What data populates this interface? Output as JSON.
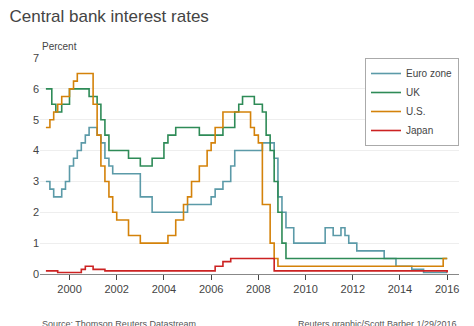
{
  "chart_data": {
    "type": "line",
    "line_style": "step",
    "title": "Central bank interest rates",
    "ylabel": "Percent",
    "annotations": [
      "Source: Thomson Reuters Datastream",
      "Reuters graphic/Scott Barber 1/29/2016"
    ],
    "xlim": [
      1998.75,
      2016.5
    ],
    "xticks": [
      2000,
      2002,
      2004,
      2006,
      2008,
      2010,
      2012,
      2014,
      2016
    ],
    "ylim": [
      0,
      7
    ],
    "yticks": [
      0,
      1,
      2,
      3,
      4,
      5,
      6,
      7
    ],
    "grid": "y",
    "legend": "upper right",
    "series": [
      {
        "name": "Euro zone",
        "color": "#5b9aa8",
        "x": [
          1999.0,
          1999.17,
          1999.33,
          1999.5,
          1999.67,
          1999.83,
          2000.0,
          2000.17,
          2000.33,
          2000.5,
          2000.67,
          2000.83,
          2001.0,
          2001.17,
          2001.33,
          2001.5,
          2001.67,
          2001.83,
          2002.0,
          2002.5,
          2003.0,
          2003.5,
          2004.0,
          2004.5,
          2005.0,
          2005.17,
          2005.5,
          2005.83,
          2006.0,
          2006.17,
          2006.5,
          2006.83,
          2007.0,
          2007.5,
          2008.0,
          2008.17,
          2008.5,
          2008.67,
          2008.83,
          2009.0,
          2009.17,
          2009.5,
          2009.83,
          2010.0,
          2010.17,
          2010.83,
          2011.17,
          2011.5,
          2011.67,
          2011.83,
          2012.0,
          2012.17,
          2012.67,
          2013.0,
          2013.33,
          2013.83,
          2014.0,
          2014.5,
          2015.0,
          2016.0
        ],
        "values": [
          3.0,
          2.75,
          2.5,
          2.5,
          2.75,
          3.0,
          3.5,
          3.75,
          4.0,
          4.25,
          4.5,
          4.75,
          4.75,
          4.5,
          4.25,
          3.75,
          3.5,
          3.25,
          3.25,
          3.25,
          2.5,
          2.0,
          2.0,
          2.0,
          2.25,
          2.25,
          2.25,
          2.25,
          2.5,
          2.75,
          3.0,
          3.5,
          4.0,
          4.0,
          4.0,
          4.25,
          4.25,
          3.75,
          2.5,
          2.0,
          1.5,
          1.0,
          1.0,
          1.0,
          1.0,
          1.5,
          1.25,
          1.5,
          1.25,
          1.0,
          1.0,
          0.75,
          0.75,
          0.75,
          0.5,
          0.25,
          0.25,
          0.15,
          0.05,
          0.05
        ]
      },
      {
        "name": "UK",
        "color": "#2e8b57",
        "x": [
          1999.0,
          1999.25,
          1999.42,
          1999.67,
          2000.0,
          2000.5,
          2000.83,
          2001.0,
          2001.17,
          2001.33,
          2001.5,
          2001.67,
          2001.83,
          2002.0,
          2002.5,
          2003.0,
          2003.5,
          2004.0,
          2004.17,
          2004.5,
          2004.83,
          2005.0,
          2005.5,
          2006.0,
          2006.5,
          2007.0,
          2007.17,
          2007.33,
          2007.5,
          2007.67,
          2007.83,
          2008.0,
          2008.17,
          2008.33,
          2008.5,
          2008.67,
          2008.83,
          2009.0,
          2009.17,
          2009.33,
          2010.0,
          2015.0,
          2016.0
        ],
        "values": [
          6.0,
          5.5,
          5.25,
          5.5,
          6.0,
          6.0,
          5.75,
          5.75,
          5.5,
          5.0,
          4.5,
          4.0,
          4.0,
          4.0,
          3.75,
          3.5,
          3.75,
          4.25,
          4.5,
          4.75,
          4.75,
          4.75,
          4.5,
          4.5,
          4.75,
          5.25,
          5.5,
          5.75,
          5.75,
          5.75,
          5.5,
          5.5,
          5.25,
          4.5,
          4.0,
          3.0,
          2.0,
          1.0,
          0.5,
          0.5,
          0.5,
          0.5,
          0.5
        ]
      },
      {
        "name": "U.S.",
        "color": "#d4820a",
        "x": [
          1999.0,
          1999.17,
          1999.33,
          1999.5,
          1999.67,
          1999.83,
          2000.0,
          2000.17,
          2000.33,
          2000.5,
          2001.0,
          2001.17,
          2001.33,
          2001.5,
          2001.67,
          2001.83,
          2002.0,
          2002.5,
          2003.0,
          2003.5,
          2004.0,
          2004.17,
          2004.5,
          2004.83,
          2005.0,
          2005.17,
          2005.5,
          2005.83,
          2006.0,
          2006.17,
          2006.5,
          2006.83,
          2007.0,
          2007.5,
          2007.67,
          2007.83,
          2008.0,
          2008.17,
          2008.5,
          2008.67,
          2008.83,
          2009.0,
          2015.5,
          2015.83,
          2016.0
        ],
        "values": [
          4.75,
          5.0,
          5.25,
          5.5,
          5.75,
          5.75,
          6.0,
          6.25,
          6.5,
          6.5,
          5.5,
          4.5,
          3.5,
          3.0,
          2.5,
          2.0,
          1.75,
          1.25,
          1.0,
          1.0,
          1.0,
          1.25,
          1.75,
          2.25,
          2.5,
          3.0,
          3.5,
          4.0,
          4.25,
          4.75,
          5.25,
          5.25,
          5.25,
          5.25,
          4.75,
          4.5,
          4.25,
          2.25,
          1.0,
          0.5,
          0.25,
          0.25,
          0.25,
          0.5,
          0.5
        ]
      },
      {
        "name": "Japan",
        "color": "#cc2222",
        "x": [
          1999.0,
          1999.5,
          2000.0,
          2000.5,
          2000.67,
          2001.0,
          2001.5,
          2006.0,
          2006.17,
          2006.5,
          2006.83,
          2007.0,
          2007.5,
          2008.0,
          2008.5,
          2008.67,
          2009.0,
          2016.0
        ],
        "values": [
          0.1,
          0.05,
          0.05,
          0.15,
          0.25,
          0.15,
          0.1,
          0.1,
          0.25,
          0.4,
          0.5,
          0.5,
          0.5,
          0.5,
          0.5,
          0.1,
          0.1,
          0.05
        ]
      }
    ]
  }
}
